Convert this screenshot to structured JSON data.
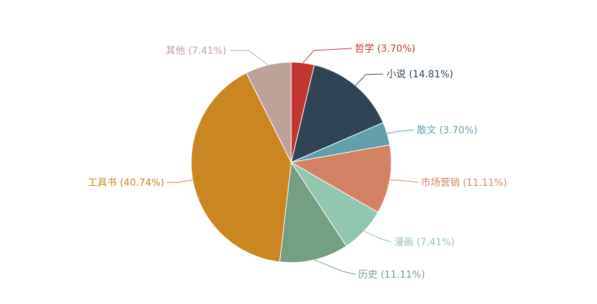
{
  "chart_data": {
    "type": "pie",
    "slices": [
      {
        "name": "哲学",
        "value": 3.7,
        "label": "哲学 (3.70%)",
        "color": "#c23531"
      },
      {
        "name": "小说",
        "value": 14.81,
        "label": "小说 (14.81%)",
        "color": "#2f4554"
      },
      {
        "name": "散文",
        "value": 3.7,
        "label": "散文 (3.70%)",
        "color": "#61a0a8"
      },
      {
        "name": "市场营销",
        "value": 11.11,
        "label": "市场营销 (11.11%)",
        "color": "#d48265"
      },
      {
        "name": "漫画",
        "value": 7.41,
        "label": "漫画 (7.41%)",
        "color": "#91c7ae"
      },
      {
        "name": "历史",
        "value": 11.11,
        "label": "历史 (11.11%)",
        "color": "#749f83"
      },
      {
        "name": "工具书",
        "value": 40.74,
        "label": "工具书 (40.74%)",
        "color": "#ca8622"
      },
      {
        "name": "其他",
        "value": 7.41,
        "label": "其他 (7.41%)",
        "color": "#bda29a"
      }
    ]
  }
}
